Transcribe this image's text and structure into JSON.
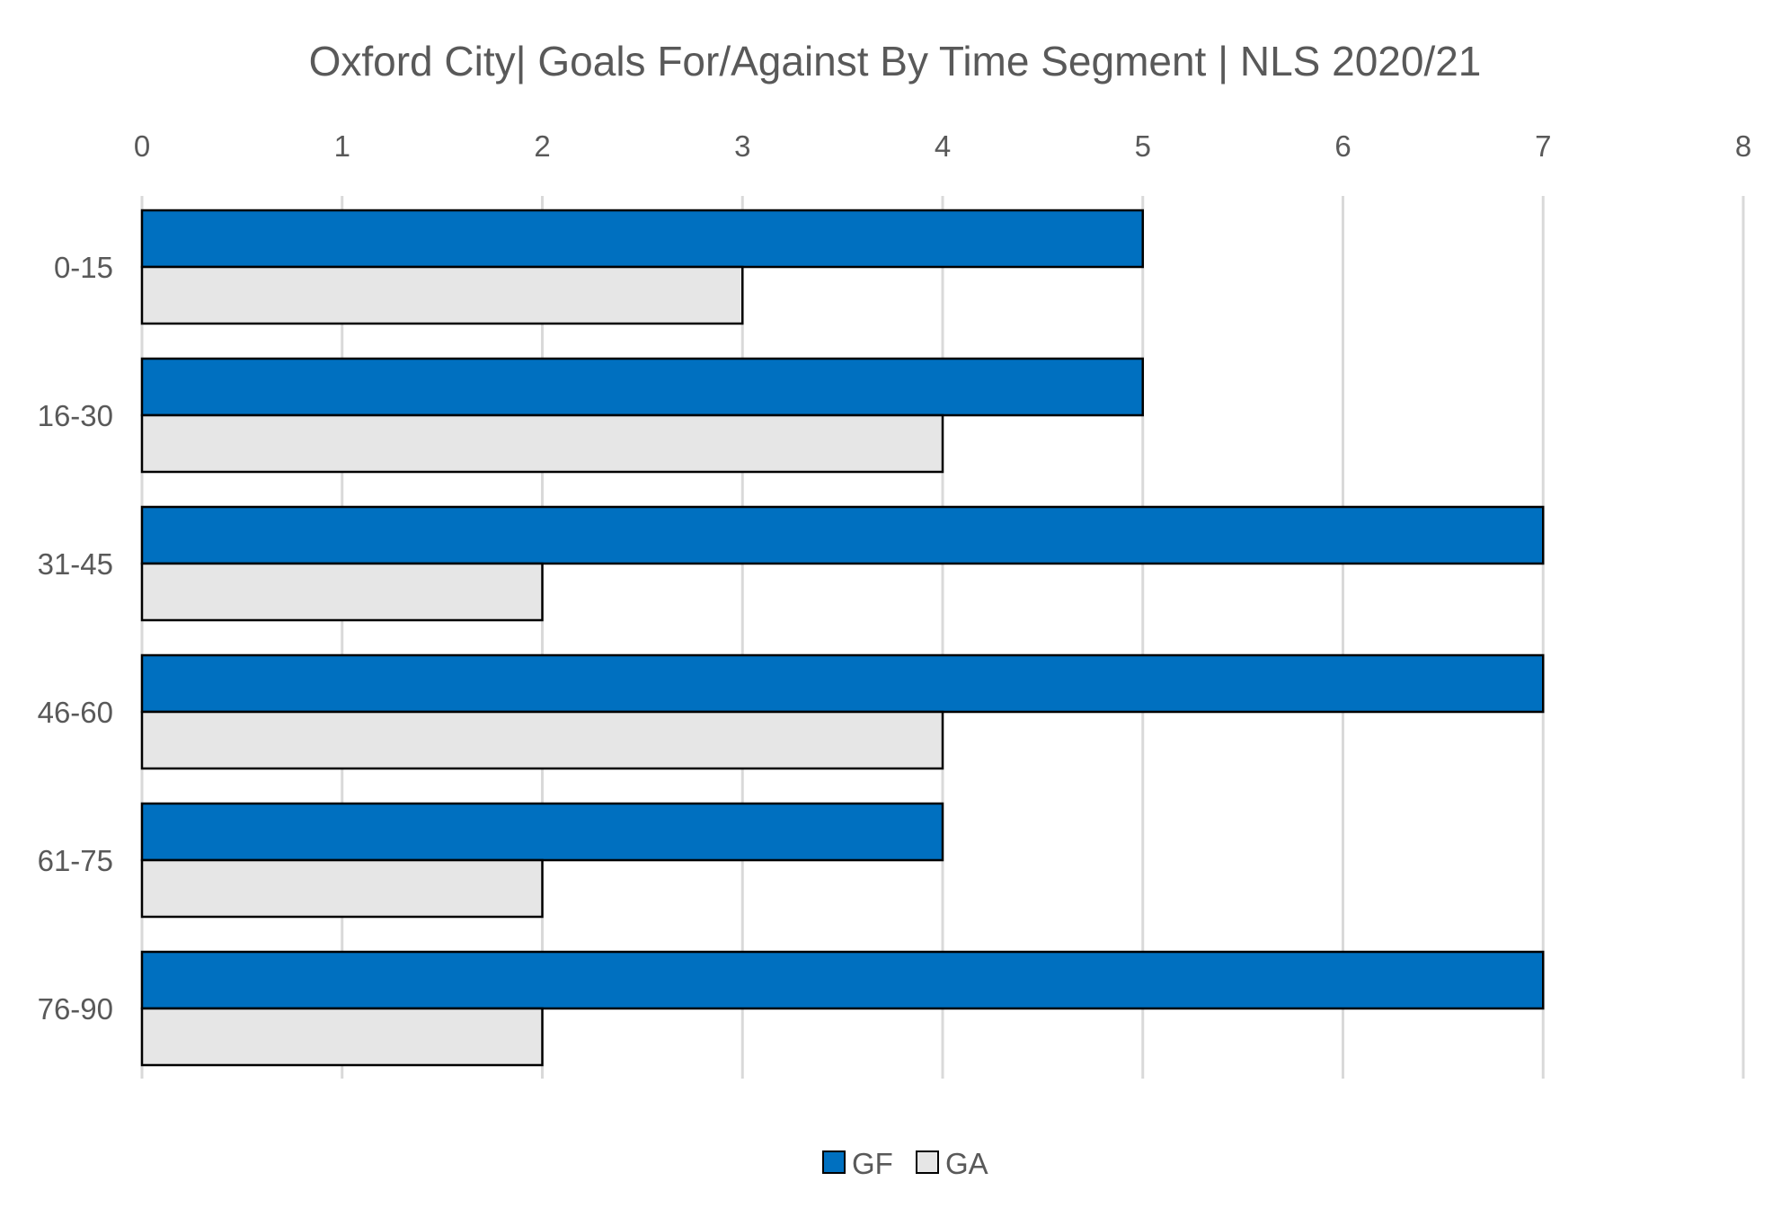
{
  "chart_data": {
    "type": "bar",
    "orientation": "horizontal",
    "title": "Oxford City| Goals For/Against By Time Segment | NLS 2020/21",
    "categories": [
      "0-15",
      "16-30",
      "31-45",
      "46-60",
      "61-75",
      "76-90"
    ],
    "series": [
      {
        "name": "GF",
        "values": [
          5,
          5,
          7,
          7,
          4,
          7
        ],
        "color": "#0070c0"
      },
      {
        "name": "GA",
        "values": [
          3,
          4,
          2,
          4,
          2,
          2
        ],
        "color": "#e6e6e6"
      }
    ],
    "xlim": [
      0,
      8
    ],
    "x_ticks": [
      "0",
      "1",
      "2",
      "3",
      "4",
      "5",
      "6",
      "7",
      "8"
    ],
    "x_axis_position": "top",
    "grid": true,
    "legend_position": "bottom"
  }
}
